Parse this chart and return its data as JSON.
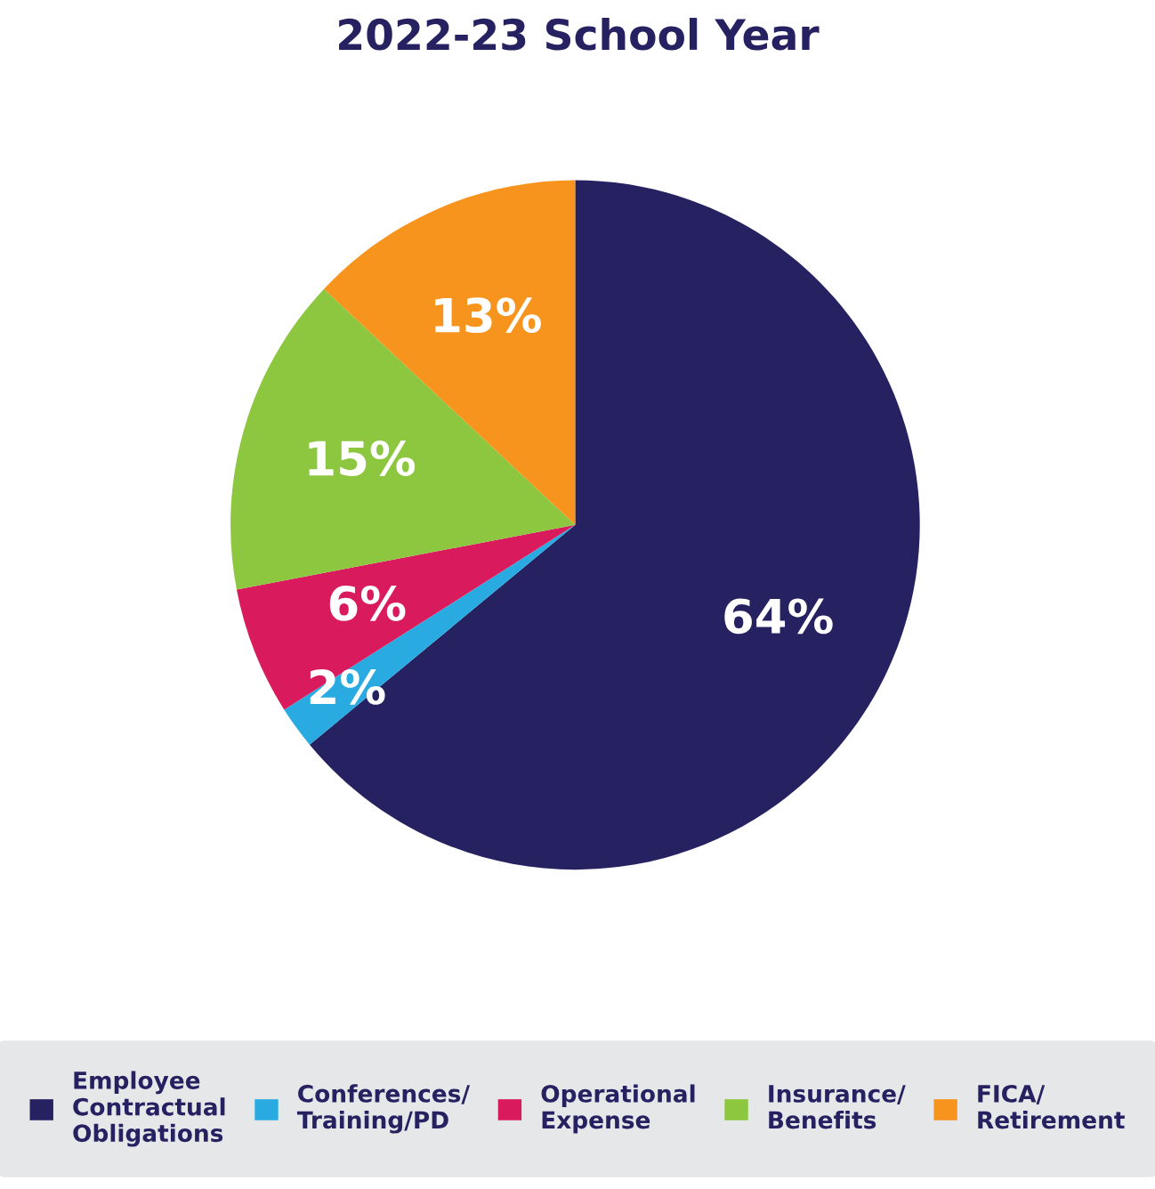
{
  "chart_data": {
    "type": "pie",
    "title": "2022-23 School Year",
    "categories": [
      "Employee\nContractual\nObligations",
      "Conferences/\nTraining/PD",
      "Operational\nExpense",
      "Insurance/\nBenefits",
      "FICA/\nRetirement"
    ],
    "values": [
      64,
      2,
      6,
      15,
      13
    ],
    "colors": [
      "#262262",
      "#29abe2",
      "#d91a5c",
      "#8dc63f",
      "#f7941d"
    ],
    "value_labels": [
      "64%",
      "2%",
      "6%",
      "15%",
      "13%"
    ],
    "legend": "bottom"
  }
}
